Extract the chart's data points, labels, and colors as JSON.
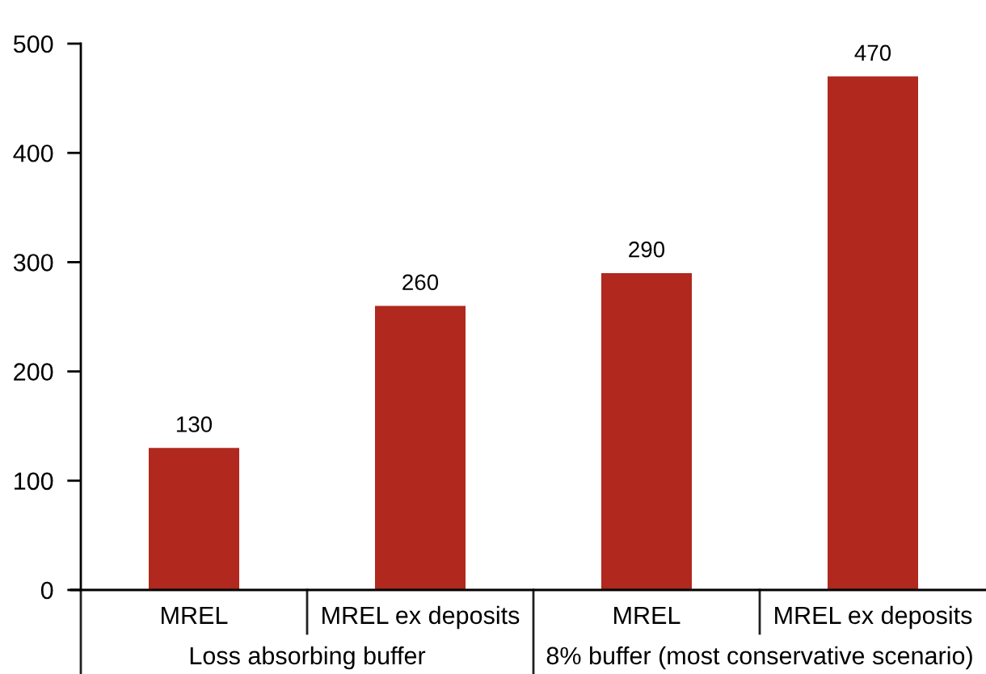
{
  "chart_data": {
    "type": "bar",
    "categories": [
      "MREL",
      "MREL ex deposits",
      "MREL",
      "MREL ex deposits"
    ],
    "values": [
      130,
      260,
      290,
      470
    ],
    "color": "#b0281e",
    "ylim": [
      0,
      500
    ],
    "yticks": [
      0,
      100,
      200,
      300,
      400,
      500
    ],
    "data_labels": true,
    "annotations": [
      "Loss absorbing buffer",
      "8% buffer (most conservative scenario)"
    ]
  }
}
